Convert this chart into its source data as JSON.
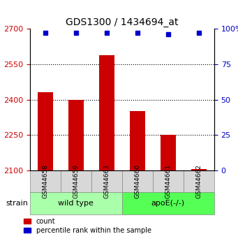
{
  "title": "GDS1300 / 1434694_at",
  "samples": [
    "GSM44658",
    "GSM44659",
    "GSM44663",
    "GSM44660",
    "GSM44661",
    "GSM44662"
  ],
  "groups": [
    "wild type",
    "wild type",
    "wild type",
    "apoE(-/-)",
    "apoE(-/-)",
    "apoE(-/-)"
  ],
  "counts": [
    2430,
    2400,
    2590,
    2350,
    2250,
    2105
  ],
  "percentiles": [
    97,
    97,
    97,
    97,
    96,
    97
  ],
  "ylim_left": [
    2100,
    2700
  ],
  "ylim_right": [
    0,
    100
  ],
  "yticks_left": [
    2100,
    2250,
    2400,
    2550,
    2700
  ],
  "yticks_right": [
    0,
    25,
    50,
    75,
    100
  ],
  "bar_color": "#cc0000",
  "dot_color": "#0000cc",
  "group_colors": {
    "wild type": "#aaffaa",
    "apoE(-/-)": "#55ff55"
  },
  "legend_count_label": "count",
  "legend_pct_label": "percentile rank within the sample",
  "strain_label": "strain",
  "background_color": "#ffffff",
  "grid_color": "#000000",
  "left_tick_color": "#cc0000",
  "right_tick_color": "#0000cc"
}
